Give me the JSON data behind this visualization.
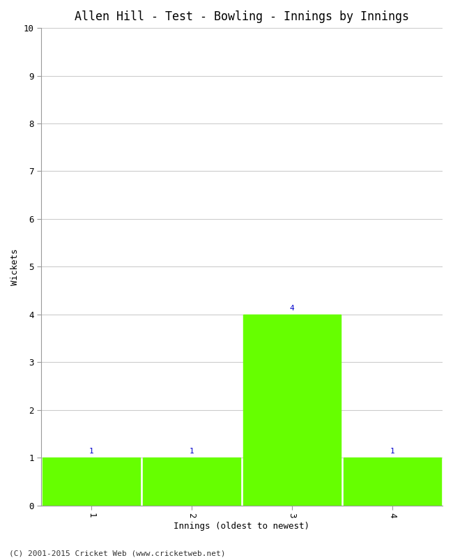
{
  "title": "Allen Hill - Test - Bowling - Innings by Innings",
  "xlabel": "Innings (oldest to newest)",
  "ylabel": "Wickets",
  "categories": [
    "1",
    "2",
    "3",
    "4"
  ],
  "values": [
    1,
    1,
    4,
    1
  ],
  "bar_color": "#66ff00",
  "bar_edge_color": "#66ff00",
  "label_color": "#0000cc",
  "ylim": [
    0,
    10
  ],
  "yticks": [
    0,
    1,
    2,
    3,
    4,
    5,
    6,
    7,
    8,
    9,
    10
  ],
  "background_color": "#ffffff",
  "grid_color": "#cccccc",
  "title_fontsize": 12,
  "axis_label_fontsize": 9,
  "tick_fontsize": 9,
  "label_fontsize": 8,
  "footer": "(C) 2001-2015 Cricket Web (www.cricketweb.net)",
  "footer_fontsize": 8,
  "bar_width": 0.97
}
